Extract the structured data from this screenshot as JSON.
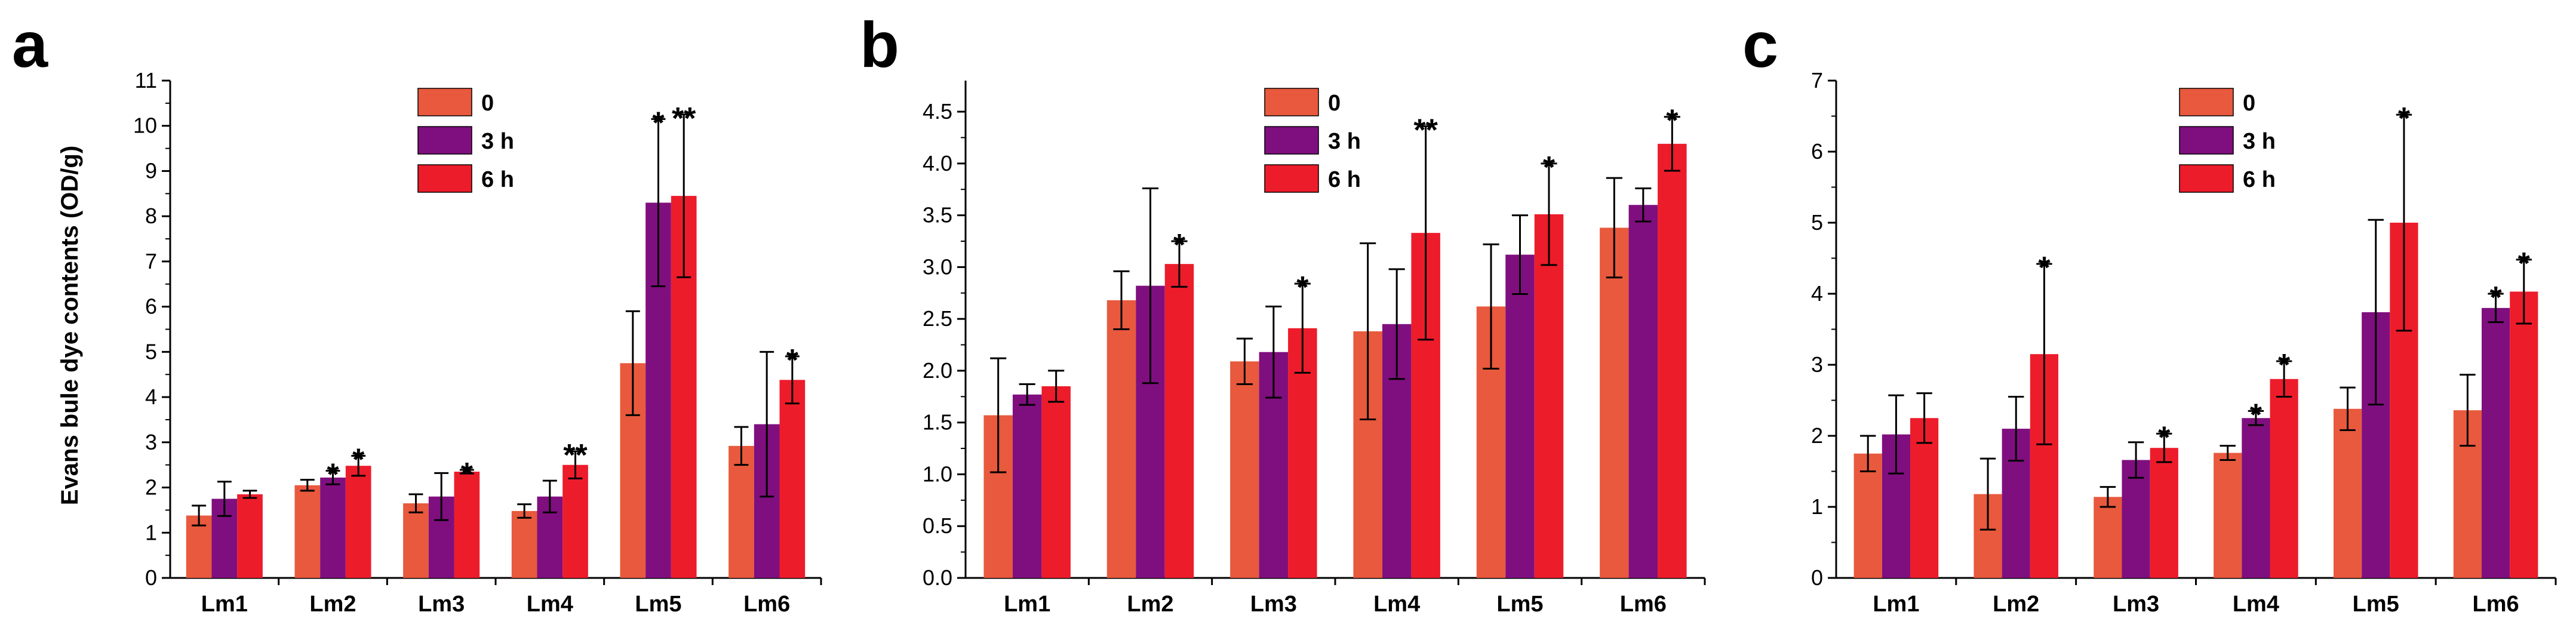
{
  "chart_data": [
    {
      "panel": "a",
      "type": "bar",
      "ylabel": "Evans bule dye contents (OD/g)",
      "xlabel": "",
      "ylim": [
        0,
        11
      ],
      "yticks": [
        "0",
        "1",
        "2",
        "3",
        "4",
        "5",
        "6",
        "7",
        "8",
        "9",
        "10",
        "11"
      ],
      "legend_position": "top-center",
      "categories": [
        "Lm1",
        "Lm2",
        "Lm3",
        "Lm4",
        "Lm5",
        "Lm6"
      ],
      "series": [
        {
          "name": "0",
          "color": "#E8593D",
          "values": [
            1.38,
            2.05,
            1.65,
            1.48,
            4.75,
            2.92
          ],
          "errors": [
            0.22,
            0.12,
            0.2,
            0.15,
            1.15,
            0.42
          ],
          "sig": [
            "",
            "",
            "",
            "",
            "",
            ""
          ]
        },
        {
          "name": "3 h",
          "color": "#7F0F7E",
          "values": [
            1.75,
            2.22,
            1.8,
            1.8,
            8.3,
            3.4
          ],
          "errors": [
            0.38,
            0.15,
            0.52,
            0.35,
            1.85,
            1.6
          ],
          "sig": [
            "",
            "*",
            "",
            "",
            "*",
            ""
          ]
        },
        {
          "name": "6 h",
          "color": "#ED1C2B",
          "values": [
            1.85,
            2.48,
            2.35,
            2.5,
            8.45,
            4.38
          ],
          "errors": [
            0.08,
            0.22,
            0.04,
            0.3,
            1.8,
            0.52
          ],
          "sig": [
            "",
            "*",
            "*",
            "**",
            "**",
            "*"
          ]
        }
      ]
    },
    {
      "panel": "b",
      "type": "bar",
      "ylabel": "",
      "xlabel": "",
      "ylim": [
        0,
        4.8
      ],
      "yticks": [
        "0.0",
        "0.5",
        "1.0",
        "1.5",
        "2.0",
        "2.5",
        "3.0",
        "3.5",
        "4.0",
        "4.5"
      ],
      "legend_position": "top-center",
      "categories": [
        "Lm1",
        "Lm2",
        "Lm3",
        "Lm4",
        "Lm5",
        "Lm6"
      ],
      "series": [
        {
          "name": "0",
          "color": "#E8593D",
          "values": [
            1.57,
            2.68,
            2.09,
            2.38,
            2.62,
            3.38
          ],
          "errors": [
            0.55,
            0.28,
            0.22,
            0.85,
            0.6,
            0.48
          ],
          "sig": [
            "",
            "",
            "",
            "",
            "",
            ""
          ]
        },
        {
          "name": "3 h",
          "color": "#7F0F7E",
          "values": [
            1.77,
            2.82,
            2.18,
            2.45,
            3.12,
            3.6
          ],
          "errors": [
            0.1,
            0.94,
            0.44,
            0.53,
            0.38,
            0.16
          ],
          "sig": [
            "",
            "",
            "",
            "",
            "",
            ""
          ]
        },
        {
          "name": "6 h",
          "color": "#ED1C2B",
          "values": [
            1.85,
            3.03,
            2.41,
            3.33,
            3.51,
            4.19
          ],
          "errors": [
            0.15,
            0.22,
            0.43,
            1.03,
            0.49,
            0.26
          ],
          "sig": [
            "",
            "*",
            "*",
            "**",
            "*",
            "*"
          ]
        }
      ]
    },
    {
      "panel": "c",
      "type": "bar",
      "ylabel": "",
      "xlabel": "",
      "ylim": [
        0,
        7
      ],
      "yticks": [
        "0",
        "1",
        "2",
        "3",
        "4",
        "5",
        "6",
        "7"
      ],
      "legend_position": "top-center",
      "categories": [
        "Lm1",
        "Lm2",
        "Lm3",
        "Lm4",
        "Lm5",
        "Lm6"
      ],
      "series": [
        {
          "name": "0",
          "color": "#E8593D",
          "values": [
            1.75,
            1.18,
            1.14,
            1.76,
            2.38,
            2.36
          ],
          "errors": [
            0.25,
            0.5,
            0.14,
            0.1,
            0.3,
            0.5
          ],
          "sig": [
            "",
            "",
            "",
            "",
            "",
            ""
          ]
        },
        {
          "name": "3 h",
          "color": "#7F0F7E",
          "values": [
            2.02,
            2.1,
            1.66,
            2.25,
            3.74,
            3.8
          ],
          "errors": [
            0.55,
            0.45,
            0.25,
            0.1,
            1.3,
            0.2
          ],
          "sig": [
            "",
            "",
            "",
            "*",
            "",
            "*"
          ]
        },
        {
          "name": "6 h",
          "color": "#ED1C2B",
          "values": [
            2.25,
            3.15,
            1.83,
            2.8,
            5.0,
            4.03
          ],
          "errors": [
            0.35,
            1.27,
            0.2,
            0.25,
            1.52,
            0.45
          ],
          "sig": [
            "",
            "*",
            "*",
            "*",
            "*",
            "*"
          ]
        }
      ]
    }
  ]
}
